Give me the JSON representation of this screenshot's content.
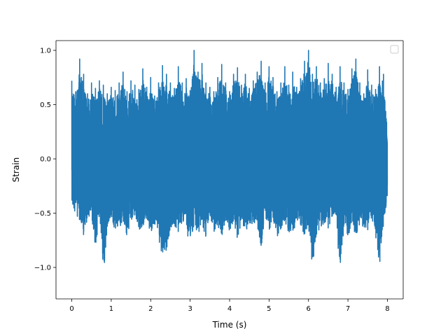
{
  "chart_data": {
    "type": "line",
    "title": "",
    "xlabel": "Time (s)",
    "ylabel": "Strain",
    "xlim": [
      -0.4,
      8.4
    ],
    "ylim": [
      -1.29,
      1.09
    ],
    "grid": false,
    "legend": {
      "placement": "top-right",
      "entries": []
    },
    "xticks": [
      {
        "value": 0,
        "label": "0"
      },
      {
        "value": 1,
        "label": "1"
      },
      {
        "value": 2,
        "label": "2"
      },
      {
        "value": 3,
        "label": "3"
      },
      {
        "value": 4,
        "label": "4"
      },
      {
        "value": 5,
        "label": "5"
      },
      {
        "value": 6,
        "label": "6"
      },
      {
        "value": 7,
        "label": "7"
      },
      {
        "value": 8,
        "label": "8"
      }
    ],
    "yticks": [
      {
        "value": -1.0,
        "label": "−1.0"
      },
      {
        "value": -0.5,
        "label": "−0.5"
      },
      {
        "value": 0.0,
        "label": "0.0"
      },
      {
        "value": 0.5,
        "label": "0.5"
      },
      {
        "value": 1.0,
        "label": "1.0"
      }
    ],
    "series": [
      {
        "color": "#1f77b4",
        "x": [
          0,
          0.1,
          0.2,
          0.3,
          0.4,
          0.5,
          0.6,
          0.7,
          0.8,
          0.9,
          1.0,
          1.1,
          1.2,
          1.3,
          1.4,
          1.5,
          1.6,
          1.7,
          1.8,
          1.9,
          2.0,
          2.1,
          2.2,
          2.3,
          2.4,
          2.5,
          2.6,
          2.7,
          2.8,
          2.9,
          3.0,
          3.1,
          3.2,
          3.3,
          3.4,
          3.5,
          3.6,
          3.7,
          3.8,
          3.9,
          4.0,
          4.1,
          4.2,
          4.3,
          4.4,
          4.5,
          4.6,
          4.7,
          4.8,
          4.9,
          5.0,
          5.1,
          5.2,
          5.3,
          5.4,
          5.5,
          5.6,
          5.7,
          5.8,
          5.9,
          6.0,
          6.1,
          6.2,
          6.3,
          6.4,
          6.5,
          6.6,
          6.7,
          6.8,
          6.9,
          7.0,
          7.1,
          7.2,
          7.3,
          7.4,
          7.5,
          7.6,
          7.7,
          7.8,
          7.9,
          8.0
        ],
        "upper": [
          0.72,
          0.62,
          0.92,
          0.78,
          0.6,
          0.7,
          0.65,
          0.72,
          0.68,
          0.6,
          0.66,
          0.63,
          0.7,
          0.8,
          0.62,
          0.72,
          0.68,
          0.64,
          0.83,
          0.66,
          0.75,
          0.58,
          0.7,
          0.86,
          0.78,
          0.7,
          0.65,
          0.85,
          0.7,
          0.74,
          0.63,
          1.0,
          0.8,
          0.88,
          0.7,
          0.66,
          0.62,
          0.75,
          0.87,
          0.7,
          0.62,
          0.78,
          0.84,
          0.68,
          0.78,
          0.65,
          0.72,
          0.8,
          0.9,
          0.7,
          0.85,
          0.75,
          0.62,
          0.7,
          0.85,
          0.68,
          0.8,
          0.66,
          0.74,
          0.9,
          1.0,
          0.78,
          0.85,
          0.7,
          0.74,
          0.88,
          0.78,
          0.66,
          0.85,
          0.7,
          0.64,
          0.83,
          0.92,
          0.7,
          0.6,
          0.82,
          0.68,
          0.64,
          0.85,
          0.78,
          0.3
        ],
        "lower": [
          -0.45,
          -0.57,
          -0.65,
          -0.78,
          -0.62,
          -0.58,
          -0.9,
          -0.6,
          -1.19,
          -0.7,
          -0.6,
          -0.74,
          -0.75,
          -0.66,
          -0.78,
          -0.64,
          -0.58,
          -0.72,
          -0.7,
          -0.62,
          -0.76,
          -0.68,
          -0.8,
          -1.02,
          -0.94,
          -0.7,
          -0.68,
          -0.78,
          -0.64,
          -0.74,
          -0.85,
          -0.7,
          -0.78,
          -0.68,
          -0.8,
          -0.62,
          -0.75,
          -0.7,
          -0.8,
          -0.64,
          -0.75,
          -0.68,
          -0.82,
          -0.7,
          -0.78,
          -0.72,
          -0.65,
          -0.68,
          -0.92,
          -0.6,
          -0.74,
          -0.62,
          -0.8,
          -0.72,
          -0.66,
          -0.75,
          -0.78,
          -0.64,
          -0.7,
          -0.82,
          -0.74,
          -1.08,
          -0.8,
          -0.7,
          -0.66,
          -0.72,
          -0.62,
          -0.66,
          -1.15,
          -0.7,
          -0.78,
          -0.74,
          -0.8,
          -0.68,
          -0.72,
          -0.74,
          -0.62,
          -0.78,
          -1.08,
          -0.68,
          -0.4
        ]
      }
    ]
  }
}
